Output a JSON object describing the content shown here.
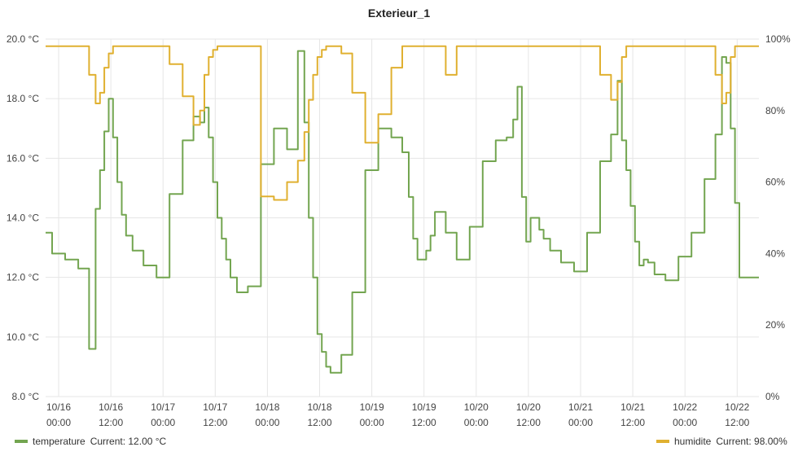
{
  "chart_data": {
    "type": "line",
    "title": "Exterieur_1",
    "x_ticks": [
      [
        "10/16",
        "00:00"
      ],
      [
        "10/16",
        "12:00"
      ],
      [
        "10/17",
        "00:00"
      ],
      [
        "10/17",
        "12:00"
      ],
      [
        "10/18",
        "00:00"
      ],
      [
        "10/18",
        "12:00"
      ],
      [
        "10/19",
        "00:00"
      ],
      [
        "10/19",
        "12:00"
      ],
      [
        "10/20",
        "00:00"
      ],
      [
        "10/20",
        "12:00"
      ],
      [
        "10/21",
        "00:00"
      ],
      [
        "10/21",
        "12:00"
      ],
      [
        "10/22",
        "00:00"
      ],
      [
        "10/22",
        "12:00"
      ]
    ],
    "x": [
      "10/15 21:00",
      "10/16 00:00",
      "10/16 03:00",
      "10/16 06:00",
      "10/16 08:00",
      "10/16 09:00",
      "10/16 10:00",
      "10/16 11:00",
      "10/16 12:00",
      "10/16 13:00",
      "10/16 14:00",
      "10/16 15:00",
      "10/16 16:00",
      "10/16 18:00",
      "10/16 21:00",
      "10/17 00:00",
      "10/17 03:00",
      "10/17 06:00",
      "10/17 08:00",
      "10/17 09:00",
      "10/17 10:00",
      "10/17 11:00",
      "10/17 12:00",
      "10/17 13:00",
      "10/17 14:00",
      "10/17 15:00",
      "10/17 16:00",
      "10/17 18:00",
      "10/17 21:00",
      "10/18 00:00",
      "10/18 03:00",
      "10/18 06:00",
      "10/18 08:00",
      "10/18 09:00",
      "10/18 10:00",
      "10/18 11:00",
      "10/18 12:00",
      "10/18 13:00",
      "10/18 14:00",
      "10/18 15:00",
      "10/18 16:00",
      "10/18 18:00",
      "10/18 21:00",
      "10/19 00:00",
      "10/19 03:00",
      "10/19 06:00",
      "10/19 08:00",
      "10/19 09:00",
      "10/19 10:00",
      "10/19 11:00",
      "10/19 12:00",
      "10/19 13:00",
      "10/19 14:00",
      "10/19 15:00",
      "10/19 16:00",
      "10/19 18:00",
      "10/19 21:00",
      "10/20 00:00",
      "10/20 03:00",
      "10/20 06:00",
      "10/20 08:00",
      "10/20 09:00",
      "10/20 10:00",
      "10/20 11:00",
      "10/20 12:00",
      "10/20 13:00",
      "10/20 14:00",
      "10/20 15:00",
      "10/20 16:00",
      "10/20 18:00",
      "10/20 21:00",
      "10/21 00:00",
      "10/21 03:00",
      "10/21 06:00",
      "10/21 08:00",
      "10/21 09:00",
      "10/21 10:00",
      "10/21 11:00",
      "10/21 12:00",
      "10/21 13:00",
      "10/21 14:00",
      "10/21 15:00",
      "10/21 16:00",
      "10/21 18:00",
      "10/21 21:00",
      "10/22 00:00",
      "10/22 03:00",
      "10/22 06:00",
      "10/22 08:00",
      "10/22 09:00",
      "10/22 10:00",
      "10/22 11:00",
      "10/22 12:00",
      "10/22 13:00",
      "10/22 14:00",
      "10/22 15:00",
      "10/22 16:00",
      "10/22 17:00"
    ],
    "series": [
      {
        "name": "temperature",
        "axis": "left",
        "color": "#73A550",
        "values": [
          13.5,
          12.8,
          12.6,
          12.3,
          9.6,
          14.3,
          15.6,
          16.9,
          18.0,
          16.7,
          15.2,
          14.1,
          13.4,
          12.9,
          12.4,
          12.0,
          14.8,
          16.6,
          17.4,
          17.2,
          17.7,
          16.7,
          15.2,
          14.0,
          13.3,
          12.6,
          12.0,
          11.5,
          11.7,
          15.8,
          17.0,
          16.3,
          19.6,
          17.2,
          14.0,
          12.0,
          10.1,
          9.5,
          9.0,
          8.8,
          8.8,
          9.4,
          11.5,
          15.6,
          17.0,
          16.7,
          16.2,
          14.7,
          13.3,
          12.6,
          12.6,
          12.9,
          13.4,
          14.2,
          14.2,
          13.5,
          12.6,
          13.7,
          15.9,
          16.6,
          16.7,
          17.3,
          18.4,
          14.7,
          13.2,
          14.0,
          14.0,
          13.6,
          13.3,
          12.9,
          12.5,
          12.2,
          13.5,
          15.9,
          16.8,
          18.6,
          16.6,
          15.6,
          14.4,
          13.2,
          12.4,
          12.6,
          12.5,
          12.1,
          11.9,
          12.7,
          13.5,
          15.3,
          16.8,
          19.4,
          19.2,
          17.0,
          14.5,
          12.0,
          12.0,
          12.0,
          12.0,
          12.0
        ],
        "current_label": "Current: 12.00 °C"
      },
      {
        "name": "humidite",
        "axis": "right",
        "color": "#E0B030",
        "values": [
          98,
          98,
          98,
          98,
          90,
          82,
          85,
          92,
          96,
          98,
          98,
          98,
          98,
          98,
          98,
          98,
          93,
          84,
          76,
          80,
          90,
          95,
          97,
          98,
          98,
          98,
          98,
          98,
          98,
          56,
          55,
          60,
          66,
          74,
          83,
          90,
          95,
          97,
          98,
          98,
          98,
          96,
          85,
          71,
          79,
          92,
          98,
          98,
          98,
          98,
          98,
          98,
          98,
          98,
          98,
          90,
          98,
          98,
          98,
          98,
          98,
          98,
          98,
          98,
          98,
          98,
          98,
          98,
          98,
          98,
          98,
          98,
          98,
          90,
          83,
          88,
          95,
          98,
          98,
          98,
          98,
          98,
          98,
          98,
          98,
          98,
          98,
          98,
          90,
          82,
          85,
          95,
          98,
          98,
          98,
          98,
          98,
          98
        ],
        "current_label": "Current: 98.00%"
      }
    ],
    "y_left": {
      "min": 8,
      "max": 20,
      "ticks": [
        "8.0 °C",
        "10.0 °C",
        "12.0 °C",
        "14.0 °C",
        "16.0 °C",
        "18.0 °C",
        "20.0 °C"
      ]
    },
    "y_right": {
      "min": 0,
      "max": 100,
      "ticks": [
        "0%",
        "20%",
        "40%",
        "60%",
        "80%",
        "100%"
      ]
    },
    "grid": true,
    "legend_placement": "bottom"
  },
  "legend": {
    "temperature_label": "temperature",
    "temperature_current": "Current: 12.00 °C",
    "humidite_label": "humidite",
    "humidite_current": "Current: 98.00%"
  }
}
